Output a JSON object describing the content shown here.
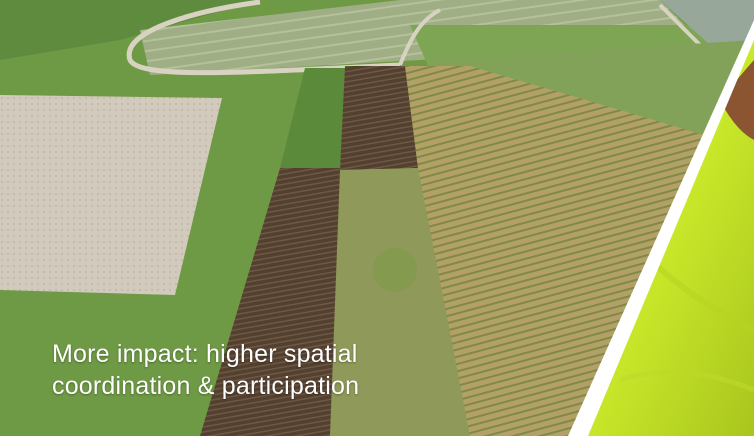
{
  "slide": {
    "caption_line1": "More impact: higher spatial",
    "caption_line2": "coordination & participation"
  },
  "colors": {
    "caption_text": "#ffffff",
    "grass_green": "#6f9a45",
    "dark_plot": "#4f3a2c",
    "dry_field": "#b99f6a",
    "hi_vis_yellow": "#d6f23a"
  },
  "images": {
    "main_photo": "aerial-farmland-photo",
    "right_photo": "hi-vis-jacket-photo"
  }
}
